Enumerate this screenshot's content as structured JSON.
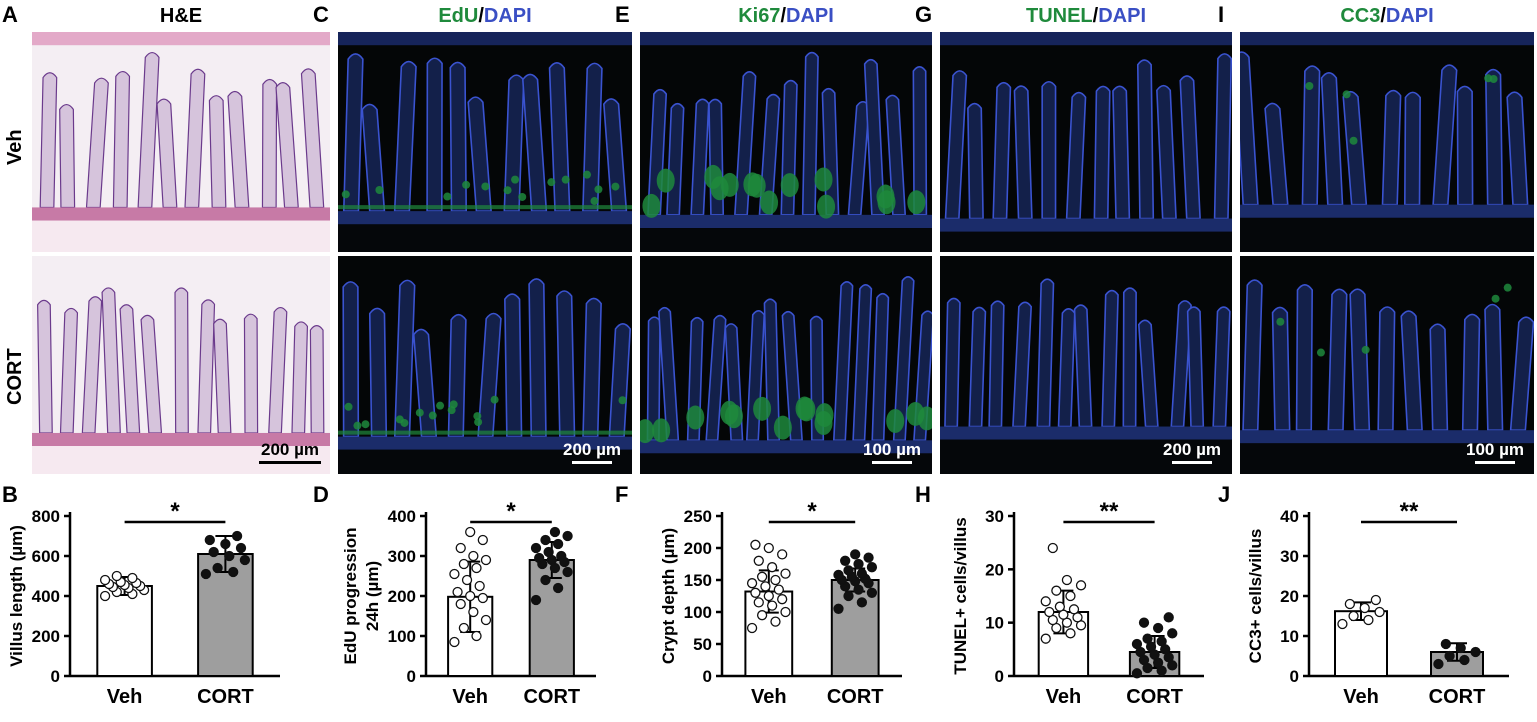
{
  "panels_top": [
    {
      "letter": "A",
      "title": "H&E",
      "title_parts": [
        {
          "text": "H&E",
          "color": "#000000"
        }
      ],
      "scale_bar": "200 µm",
      "stain": "he"
    },
    {
      "letter": "C",
      "title": "EdU/DAPI",
      "title_parts": [
        {
          "text": "EdU",
          "color": "#1f8a3c"
        },
        {
          "text": "/",
          "color": "#000000"
        },
        {
          "text": "DAPI",
          "color": "#3a4fc4"
        }
      ],
      "scale_bar": "200 µm",
      "stain": "edu"
    },
    {
      "letter": "E",
      "title": "Ki67/DAPI",
      "title_parts": [
        {
          "text": "Ki67",
          "color": "#1f8a3c"
        },
        {
          "text": "/",
          "color": "#000000"
        },
        {
          "text": "DAPI",
          "color": "#3a4fc4"
        }
      ],
      "scale_bar": "100 µm",
      "stain": "ki67"
    },
    {
      "letter": "G",
      "title": "TUNEL/DAPI",
      "title_parts": [
        {
          "text": "TUNEL",
          "color": "#1f8a3c"
        },
        {
          "text": "/",
          "color": "#000000"
        },
        {
          "text": "DAPI",
          "color": "#3a4fc4"
        }
      ],
      "scale_bar": "200 µm",
      "stain": "tunel"
    },
    {
      "letter": "I",
      "title": "CC3/DAPI",
      "title_parts": [
        {
          "text": "CC3",
          "color": "#1f8a3c"
        },
        {
          "text": "/",
          "color": "#000000"
        },
        {
          "text": "DAPI",
          "color": "#3a4fc4"
        }
      ],
      "scale_bar": "100 µm",
      "stain": "cc3"
    }
  ],
  "row_labels": [
    "Veh",
    "CORT"
  ],
  "colors": {
    "veh_bar": "#ffffff",
    "cort_bar": "#9e9e9e",
    "green_stain": "#1f8a3c",
    "blue_stain": "#3a4fc4"
  },
  "chart_data": [
    {
      "letter": "B",
      "type": "bar",
      "ylabel": "Villus length (µm)",
      "ylim": [
        0,
        800
      ],
      "yticks": [
        0,
        200,
        400,
        600,
        800
      ],
      "categories": [
        "Veh",
        "CORT"
      ],
      "values": [
        450,
        610
      ],
      "sd": [
        45,
        90
      ],
      "significance": "*",
      "points": [
        [
          400,
          410,
          420,
          430,
          440,
          445,
          450,
          455,
          460,
          465,
          470,
          480,
          490,
          500
        ],
        [
          510,
          520,
          540,
          580,
          600,
          620,
          640,
          660,
          680,
          700
        ]
      ]
    },
    {
      "letter": "D",
      "type": "bar",
      "ylabel": "EdU progression 24h (µm)",
      "ylim": [
        0,
        400
      ],
      "yticks": [
        0,
        100,
        200,
        300,
        400
      ],
      "categories": [
        "Veh",
        "CORT"
      ],
      "values": [
        198,
        290
      ],
      "sd": [
        88,
        45
      ],
      "significance": "*",
      "points": [
        [
          85,
          100,
          120,
          140,
          160,
          180,
          195,
          200,
          210,
          225,
          240,
          255,
          270,
          280,
          290,
          300,
          320,
          340,
          360
        ],
        [
          190,
          220,
          240,
          260,
          270,
          280,
          285,
          290,
          295,
          300,
          310,
          320,
          330,
          340,
          350,
          360
        ]
      ]
    },
    {
      "letter": "F",
      "type": "bar",
      "ylabel": "Crypt depth (µm)",
      "ylim": [
        0,
        250
      ],
      "yticks": [
        0,
        50,
        100,
        150,
        200,
        250
      ],
      "categories": [
        "Veh",
        "CORT"
      ],
      "values": [
        132,
        150
      ],
      "sd": [
        33,
        18
      ],
      "significance": "*",
      "points": [
        [
          75,
          85,
          95,
          100,
          110,
          115,
          120,
          125,
          130,
          135,
          140,
          145,
          150,
          155,
          160,
          170,
          180,
          190,
          200,
          205
        ],
        [
          105,
          115,
          125,
          130,
          135,
          140,
          145,
          148,
          150,
          152,
          155,
          158,
          160,
          165,
          170,
          175,
          180,
          185,
          190
        ]
      ]
    },
    {
      "letter": "H",
      "type": "bar",
      "ylabel": "TUNEL+ cells/villus",
      "ylim": [
        0,
        30
      ],
      "yticks": [
        0,
        10,
        20,
        30
      ],
      "categories": [
        "Veh",
        "CORT"
      ],
      "values": [
        12,
        4.5
      ],
      "sd": [
        4,
        3
      ],
      "significance": "**",
      "points": [
        [
          7,
          8,
          9,
          9.5,
          10,
          10.5,
          11,
          11.5,
          12,
          12.5,
          13,
          14,
          15,
          16,
          17,
          18,
          24
        ],
        [
          0.5,
          1,
          1.5,
          2,
          2.5,
          3,
          3.5,
          4,
          4.5,
          5,
          5.5,
          6,
          6.5,
          7,
          8,
          9,
          10,
          11
        ]
      ]
    },
    {
      "letter": "J",
      "type": "bar",
      "ylabel": "CC3+ cells/villus",
      "ylim": [
        0,
        40
      ],
      "yticks": [
        0,
        10,
        20,
        30,
        40
      ],
      "categories": [
        "Veh",
        "CORT"
      ],
      "values": [
        16.2,
        6
      ],
      "sd": [
        2.2,
        2.2
      ],
      "significance": "**",
      "points": [
        [
          13,
          14,
          15,
          16,
          17,
          18,
          19
        ],
        [
          3,
          4,
          5,
          6,
          7,
          8
        ]
      ]
    }
  ]
}
